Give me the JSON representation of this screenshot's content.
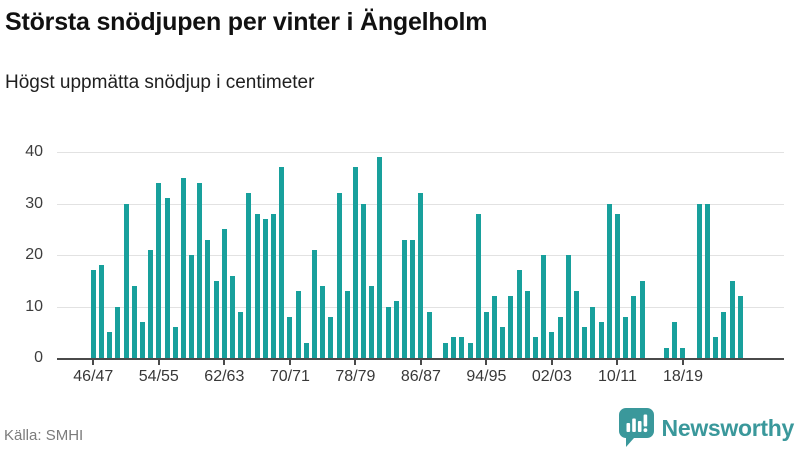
{
  "header": {
    "title": "Största snödjupen per vinter i Ängelholm",
    "subtitle": "Högst uppmätta snödjup i centimeter"
  },
  "footer": {
    "source": "Källa: SMHI",
    "brand": "Newsworthy",
    "brand_icon": "bar-chart-speech-bubble-icon"
  },
  "colors": {
    "bar": "#18a09c",
    "brand": "#3a989b",
    "grid": "#e2e2e2",
    "axis": "#4a4a4a",
    "axis_text": "#3d3d3d",
    "source_text": "#7b7b7b"
  },
  "chart_data": {
    "type": "bar",
    "title": "Största snödjupen per vinter i Ängelholm",
    "subtitle": "Högst uppmätta snödjup i centimeter",
    "ylabel": "",
    "xlabel": "",
    "unit": "cm",
    "ylim": [
      0,
      40
    ],
    "y_ticks": [
      0,
      10,
      20,
      30,
      40
    ],
    "grid": true,
    "legend": "none",
    "x_tick_labels": [
      "46/47",
      "54/55",
      "62/63",
      "70/71",
      "78/79",
      "86/87",
      "94/95",
      "02/03",
      "10/11",
      "18/19"
    ],
    "x_tick_indices": [
      0,
      8,
      16,
      24,
      32,
      40,
      48,
      56,
      64,
      72
    ],
    "categories": [
      "46/47",
      "47/48",
      "48/49",
      "49/50",
      "50/51",
      "51/52",
      "52/53",
      "53/54",
      "54/55",
      "55/56",
      "56/57",
      "57/58",
      "58/59",
      "59/60",
      "60/61",
      "61/62",
      "62/63",
      "63/64",
      "64/65",
      "65/66",
      "66/67",
      "67/68",
      "68/69",
      "69/70",
      "70/71",
      "71/72",
      "72/73",
      "73/74",
      "74/75",
      "75/76",
      "76/77",
      "77/78",
      "78/79",
      "79/80",
      "80/81",
      "81/82",
      "82/83",
      "83/84",
      "84/85",
      "85/86",
      "86/87",
      "87/88",
      "88/89",
      "89/90",
      "90/91",
      "91/92",
      "92/93",
      "93/94",
      "94/95",
      "95/96",
      "96/97",
      "97/98",
      "98/99",
      "99/00",
      "00/01",
      "01/02",
      "02/03",
      "03/04",
      "04/05",
      "05/06",
      "06/07",
      "07/08",
      "08/09",
      "09/10",
      "10/11",
      "11/12",
      "12/13",
      "13/14",
      "14/15",
      "15/16",
      "16/17",
      "17/18",
      "18/19",
      "19/20",
      "20/21",
      "21/22",
      "22/23",
      "23/24",
      "24/25",
      "25/26"
    ],
    "values": [
      17,
      18,
      5,
      10,
      30,
      14,
      7,
      21,
      34,
      31,
      6,
      35,
      20,
      34,
      23,
      15,
      25,
      16,
      9,
      32,
      28,
      27,
      28,
      37,
      8,
      13,
      3,
      21,
      14,
      8,
      32,
      13,
      37,
      30,
      14,
      39,
      10,
      11,
      23,
      23,
      32,
      9,
      0,
      3,
      4,
      4,
      3,
      28,
      9,
      12,
      6,
      12,
      17,
      13,
      4,
      20,
      5,
      8,
      20,
      13,
      6,
      10,
      7,
      30,
      28,
      8,
      12,
      15,
      0,
      0,
      2,
      7,
      2,
      0,
      30,
      30,
      4,
      9,
      15,
      12
    ]
  }
}
